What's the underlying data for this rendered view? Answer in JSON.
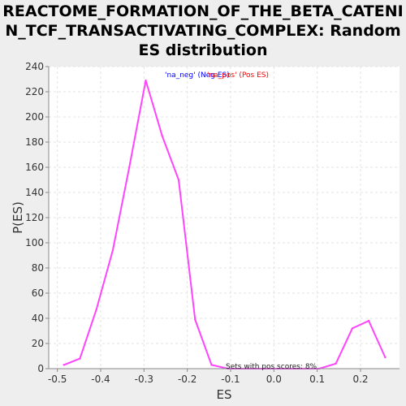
{
  "title_lines": [
    "REACTOME_FORMATION_OF_THE_BETA_CATENI",
    "N_TCF_TRANSACTIVATING_COMPLEX: Random",
    "ES distribution"
  ],
  "legend": {
    "neg_label": "'na_neg' (Neg ES)",
    "neg_color": "#0000ff",
    "pos_label": "'na_pos' (Pos ES)",
    "pos_color": "#ff0000"
  },
  "annotation": "Sets with pos scores: 8%",
  "chart_data": {
    "type": "line",
    "title": "REACTOME_FORMATION_OF_THE_BETA_CATENIN_TCF_TRANSACTIVATING_COMPLEX: Random ES distribution",
    "xlabel": "ES",
    "ylabel": "P(ES)",
    "xlim": [
      -0.52,
      0.29
    ],
    "ylim": [
      0,
      240
    ],
    "xticks": [
      "-0.5",
      "-0.4",
      "-0.3",
      "-0.2",
      "-0.1",
      "0.0",
      "0.1",
      "0.2"
    ],
    "xtick_values": [
      -0.5,
      -0.4,
      -0.3,
      -0.2,
      -0.1,
      0.0,
      0.1,
      0.2
    ],
    "yticks": [
      0,
      20,
      40,
      60,
      80,
      100,
      120,
      140,
      160,
      180,
      200,
      220,
      240
    ],
    "grid": true,
    "series": [
      {
        "color": "#ff44ff",
        "x": [
          -0.485,
          -0.448,
          -0.41,
          -0.372,
          -0.334,
          -0.296,
          -0.258,
          -0.22,
          -0.182,
          -0.144,
          -0.106,
          0.105,
          0.143,
          0.181,
          0.219,
          0.257
        ],
        "y": [
          3,
          8,
          47,
          94,
          160,
          229,
          185,
          150,
          39,
          3,
          0,
          0,
          4,
          32,
          38,
          9
        ]
      }
    ]
  }
}
